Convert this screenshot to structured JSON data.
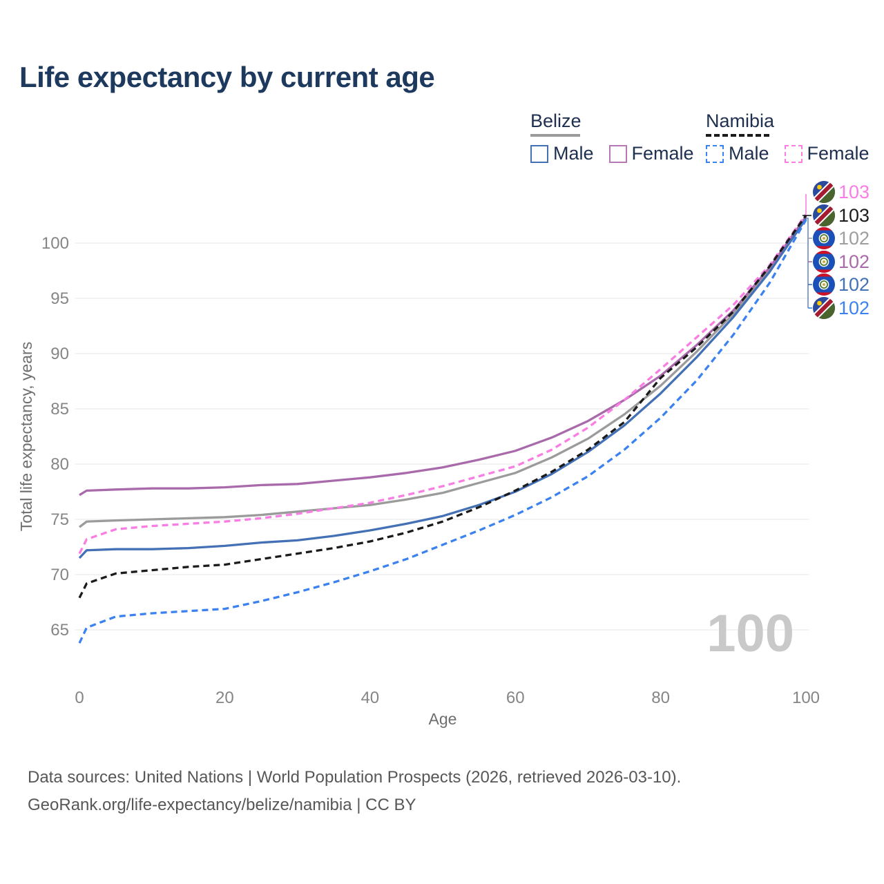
{
  "title": "Life expectancy by current age",
  "legend": {
    "groups": [
      {
        "name": "Belize",
        "line_color": "#9b9b9b",
        "line_style": "solid",
        "items": [
          {
            "label": "Male",
            "color": "#4470b5",
            "style": "solid"
          },
          {
            "label": "Female",
            "color": "#b678b4",
            "style": "solid"
          }
        ]
      },
      {
        "name": "Namibia",
        "line_color": "#1b1b1b",
        "line_style": "dashed",
        "items": [
          {
            "label": "Male",
            "color": "#3b82f0",
            "style": "dashed"
          },
          {
            "label": "Female",
            "color": "#fa7de4",
            "style": "dashed"
          }
        ]
      }
    ]
  },
  "chart_data": {
    "type": "line",
    "title": "Life expectancy by current age",
    "xlabel": "Age",
    "ylabel": "Total life expectancy, years",
    "xlim": [
      0,
      100
    ],
    "ylim": [
      64,
      103.5
    ],
    "x_ticks": [
      0,
      20,
      40,
      60,
      80,
      100
    ],
    "y_ticks": [
      65,
      70,
      75,
      80,
      85,
      90,
      95,
      100
    ],
    "grid": "horizontal",
    "legend_position": "top-right",
    "ages": [
      0,
      1,
      5,
      10,
      15,
      20,
      25,
      30,
      35,
      40,
      45,
      50,
      55,
      60,
      65,
      70,
      75,
      80,
      85,
      90,
      95,
      100
    ],
    "series": [
      {
        "name": "Belize Both sexes",
        "country": "Belize",
        "sex": "both",
        "color": "#9b9b9b",
        "dash": "solid",
        "values": [
          74.3,
          74.8,
          74.9,
          75.0,
          75.1,
          75.2,
          75.4,
          75.7,
          76.0,
          76.3,
          76.8,
          77.4,
          78.3,
          79.2,
          80.6,
          82.3,
          84.5,
          87.1,
          90.2,
          93.6,
          97.6,
          102.3
        ]
      },
      {
        "name": "Belize Female",
        "country": "Belize",
        "sex": "female",
        "color": "#a86aaa",
        "dash": "solid",
        "values": [
          77.2,
          77.6,
          77.7,
          77.8,
          77.8,
          77.9,
          78.1,
          78.2,
          78.5,
          78.8,
          79.2,
          79.7,
          80.4,
          81.2,
          82.4,
          83.9,
          85.8,
          88.0,
          90.8,
          93.9,
          97.8,
          102.4
        ]
      },
      {
        "name": "Belize Male",
        "country": "Belize",
        "sex": "male",
        "color": "#4470b5",
        "dash": "solid",
        "values": [
          71.5,
          72.2,
          72.3,
          72.3,
          72.4,
          72.6,
          72.9,
          73.1,
          73.5,
          74.0,
          74.6,
          75.3,
          76.3,
          77.5,
          79.1,
          81.1,
          83.5,
          86.4,
          89.7,
          93.3,
          97.4,
          102.2
        ]
      },
      {
        "name": "Namibia Female",
        "country": "Namibia",
        "sex": "female",
        "color": "#fa7de4",
        "dash": "dashed",
        "values": [
          71.9,
          73.2,
          74.1,
          74.4,
          74.6,
          74.8,
          75.1,
          75.5,
          76.0,
          76.5,
          77.2,
          78.0,
          78.9,
          79.8,
          81.3,
          83.3,
          85.8,
          88.6,
          91.5,
          94.4,
          98.0,
          102.6
        ]
      },
      {
        "name": "Namibia Male",
        "country": "Namibia",
        "sex": "male",
        "color": "#3b82f0",
        "dash": "dashed",
        "values": [
          63.8,
          65.2,
          66.2,
          66.5,
          66.7,
          66.9,
          67.6,
          68.4,
          69.3,
          70.3,
          71.4,
          72.7,
          74.0,
          75.4,
          77.0,
          78.9,
          81.3,
          84.2,
          87.6,
          91.7,
          96.4,
          102.1
        ]
      },
      {
        "name": "Namibia Both sexes",
        "country": "Namibia",
        "sex": "both",
        "color": "#1b1b1b",
        "dash": "dashed",
        "values": [
          67.9,
          69.2,
          70.1,
          70.4,
          70.7,
          70.9,
          71.4,
          71.9,
          72.4,
          73.0,
          73.8,
          74.8,
          76.1,
          77.6,
          79.3,
          81.3,
          83.8,
          87.8,
          90.6,
          93.8,
          97.9,
          102.5
        ]
      }
    ],
    "end_labels": [
      {
        "value": "103",
        "flag": "namibia",
        "color": "#fa7de4"
      },
      {
        "value": "103",
        "flag": "namibia",
        "color": "#1b1b1b"
      },
      {
        "value": "102",
        "flag": "belize",
        "color": "#9e9e9e"
      },
      {
        "value": "102",
        "flag": "belize",
        "color": "#a86aaa"
      },
      {
        "value": "102",
        "flag": "belize",
        "color": "#4470b5"
      },
      {
        "value": "102",
        "flag": "namibia",
        "color": "#3b82f0"
      }
    ],
    "age_counter_watermark": "100",
    "flag_colors": {
      "namibia": {
        "blue": "#2b4a9b",
        "red": "#a51c30",
        "green": "#49642d",
        "sun": "#ffcb00",
        "stripe": "#ffffff"
      },
      "belize": {
        "blue": "#1b50b8",
        "red": "#ce1126",
        "disc": "#ffffff",
        "wreath": "#4e7c31",
        "center": "#f6efda",
        "arms": "#b9a23f"
      }
    }
  },
  "footer": {
    "line1": "Data sources: United Nations | World Population Prospects (2026, retrieved 2026-03-10).",
    "line2": "GeoRank.org/life-expectancy/belize/namibia | CC BY"
  }
}
